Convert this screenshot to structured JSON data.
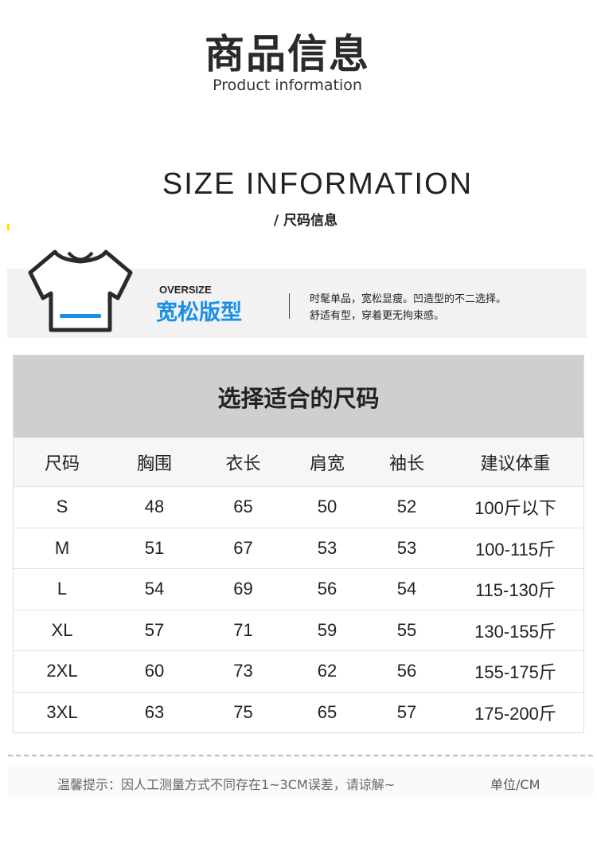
{
  "header": {
    "title": "商品信息",
    "subtitle": "Product information"
  },
  "size_section": {
    "title": "SIZE INFORMATION",
    "subtitle": "/ 尺码信息"
  },
  "banner": {
    "icon": "tshirt-icon",
    "accent_color": "#1a8fe8",
    "tag": "OVERSIZE",
    "fit": "宽松版型",
    "desc_line1": "时髦单品，宽松显瘦。凹造型的不二选择。",
    "desc_line2": "舒适有型，穿着更无拘束感。"
  },
  "table": {
    "title": "选择适合的尺码",
    "columns": [
      "尺码",
      "胸围",
      "衣长",
      "肩宽",
      "袖长",
      "建议体重"
    ],
    "rows": [
      [
        "S",
        "48",
        "65",
        "50",
        "52",
        "100斤以下"
      ],
      [
        "M",
        "51",
        "67",
        "53",
        "53",
        "100-115斤"
      ],
      [
        "L",
        "54",
        "69",
        "56",
        "54",
        "115-130斤"
      ],
      [
        "XL",
        "57",
        "71",
        "59",
        "55",
        "130-155斤"
      ],
      [
        "2XL",
        "60",
        "73",
        "62",
        "56",
        "155-175斤"
      ],
      [
        "3XL",
        "63",
        "75",
        "65",
        "57",
        "175-200斤"
      ]
    ]
  },
  "footer": {
    "note": "温馨提示：因人工测量方式不同存在1~3CM误差，请谅解~",
    "unit": "单位/CM"
  }
}
